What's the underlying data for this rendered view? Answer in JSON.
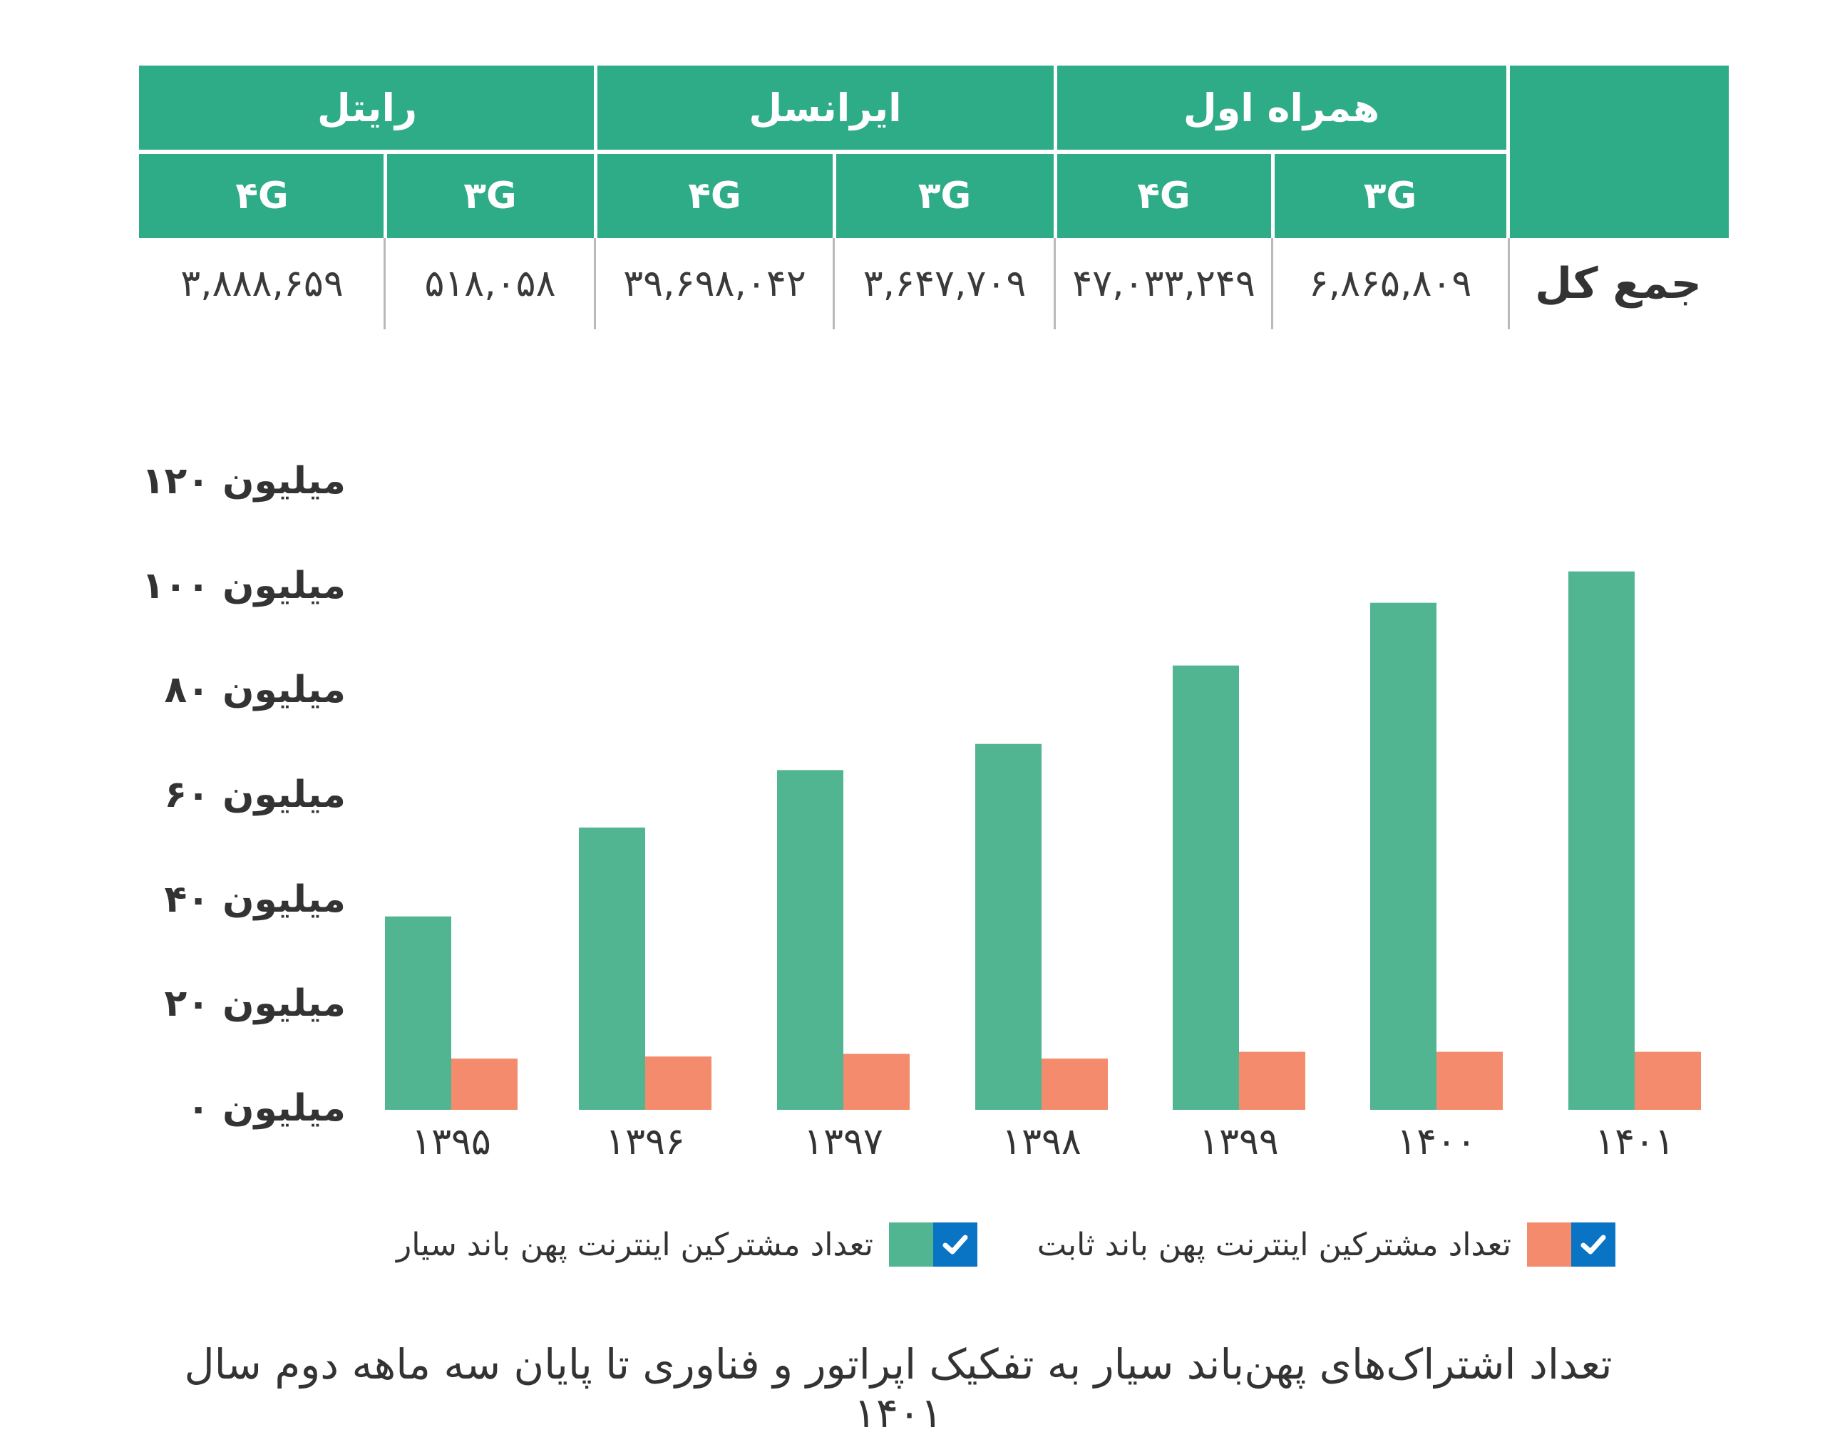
{
  "table": {
    "operators": [
      {
        "name": "همراه اول",
        "techs": [
          {
            "label": "۳G",
            "value": "۶,۸۶۵,۸۰۹"
          },
          {
            "label": "۴G",
            "value": "۴۷,۰۳۳,۲۴۹"
          }
        ]
      },
      {
        "name": "ایرانسل",
        "techs": [
          {
            "label": "۳G",
            "value": "۳,۶۴۷,۷۰۹"
          },
          {
            "label": "۴G",
            "value": "۳۹,۶۹۸,۰۴۲"
          }
        ]
      },
      {
        "name": "رایتل",
        "techs": [
          {
            "label": "۳G",
            "value": "۵۱۸,۰۵۸"
          },
          {
            "label": "۴G",
            "value": "۳,۸۸۸,۶۵۹"
          }
        ]
      }
    ],
    "row_label": "جمع کل"
  },
  "chart_data": {
    "type": "bar",
    "categories": [
      "۱۳۹۵",
      "۱۳۹۶",
      "۱۳۹۷",
      "۱۳۹۸",
      "۱۳۹۹",
      "۱۴۰۰",
      "۱۴۰۱"
    ],
    "series": [
      {
        "name": "تعداد مشترکین اینترنت پهن باند سیار",
        "color": "#52b592",
        "values": [
          37,
          54,
          65,
          70,
          85,
          97,
          103
        ]
      },
      {
        "name": "تعداد مشترکین اینترنت پهن باند ثابت",
        "color": "#f48b6d",
        "values": [
          9.8,
          10.2,
          10.7,
          9.8,
          11.1,
          11.1,
          11.1
        ]
      }
    ],
    "ylim": [
      0,
      120
    ],
    "yticks": [
      {
        "value": 0,
        "label": "میلیون ۰"
      },
      {
        "value": 20,
        "label": "میلیون ۲۰"
      },
      {
        "value": 40,
        "label": "میلیون ۴۰"
      },
      {
        "value": 60,
        "label": "میلیون ۶۰"
      },
      {
        "value": 80,
        "label": "میلیون ۸۰"
      },
      {
        "value": 100,
        "label": "میلیون ۱۰۰"
      },
      {
        "value": 120,
        "label": "میلیون ۱۲۰"
      }
    ],
    "grid": false,
    "legend": "bottom"
  },
  "caption": "تعداد اشتراک‌های پهن‌باند سیار به تفکیک اپراتور و فناوری تا پایان سه ماهه دوم سال ۱۴۰۱",
  "colors": {
    "header": "#2dac87",
    "check": "#0a74c4"
  }
}
